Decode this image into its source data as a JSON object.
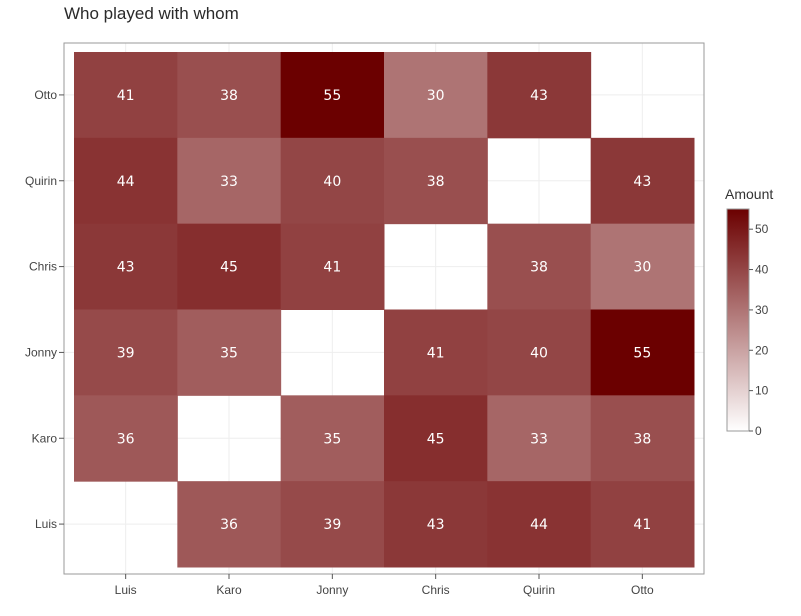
{
  "chart_data": {
    "type": "heatmap",
    "title": "Who played with whom",
    "x_categories": [
      "Luis",
      "Karo",
      "Jonny",
      "Chris",
      "Quirin",
      "Otto"
    ],
    "y_categories": [
      "Luis",
      "Karo",
      "Jonny",
      "Chris",
      "Quirin",
      "Otto"
    ],
    "cells": [
      {
        "x": "Luis",
        "y": "Otto",
        "value": 41
      },
      {
        "x": "Karo",
        "y": "Otto",
        "value": 38
      },
      {
        "x": "Jonny",
        "y": "Otto",
        "value": 55
      },
      {
        "x": "Chris",
        "y": "Otto",
        "value": 30
      },
      {
        "x": "Quirin",
        "y": "Otto",
        "value": 43
      },
      {
        "x": "Luis",
        "y": "Quirin",
        "value": 44
      },
      {
        "x": "Karo",
        "y": "Quirin",
        "value": 33
      },
      {
        "x": "Jonny",
        "y": "Quirin",
        "value": 40
      },
      {
        "x": "Chris",
        "y": "Quirin",
        "value": 38
      },
      {
        "x": "Otto",
        "y": "Quirin",
        "value": 43
      },
      {
        "x": "Luis",
        "y": "Chris",
        "value": 43
      },
      {
        "x": "Karo",
        "y": "Chris",
        "value": 45
      },
      {
        "x": "Jonny",
        "y": "Chris",
        "value": 41
      },
      {
        "x": "Quirin",
        "y": "Chris",
        "value": 38
      },
      {
        "x": "Otto",
        "y": "Chris",
        "value": 30
      },
      {
        "x": "Luis",
        "y": "Jonny",
        "value": 39
      },
      {
        "x": "Karo",
        "y": "Jonny",
        "value": 35
      },
      {
        "x": "Chris",
        "y": "Jonny",
        "value": 41
      },
      {
        "x": "Quirin",
        "y": "Jonny",
        "value": 40
      },
      {
        "x": "Otto",
        "y": "Jonny",
        "value": 55
      },
      {
        "x": "Luis",
        "y": "Karo",
        "value": 36
      },
      {
        "x": "Jonny",
        "y": "Karo",
        "value": 35
      },
      {
        "x": "Chris",
        "y": "Karo",
        "value": 45
      },
      {
        "x": "Quirin",
        "y": "Karo",
        "value": 33
      },
      {
        "x": "Otto",
        "y": "Karo",
        "value": 38
      },
      {
        "x": "Karo",
        "y": "Luis",
        "value": 36
      },
      {
        "x": "Jonny",
        "y": "Luis",
        "value": 39
      },
      {
        "x": "Chris",
        "y": "Luis",
        "value": 43
      },
      {
        "x": "Quirin",
        "y": "Luis",
        "value": 44
      },
      {
        "x": "Otto",
        "y": "Luis",
        "value": 41
      }
    ],
    "legend": {
      "title": "Amount",
      "range": [
        0,
        55
      ],
      "ticks": [
        0,
        10,
        20,
        30,
        40,
        50
      ],
      "color_low": "#ffffff",
      "color_high": "#6b0000"
    },
    "grid": true
  }
}
